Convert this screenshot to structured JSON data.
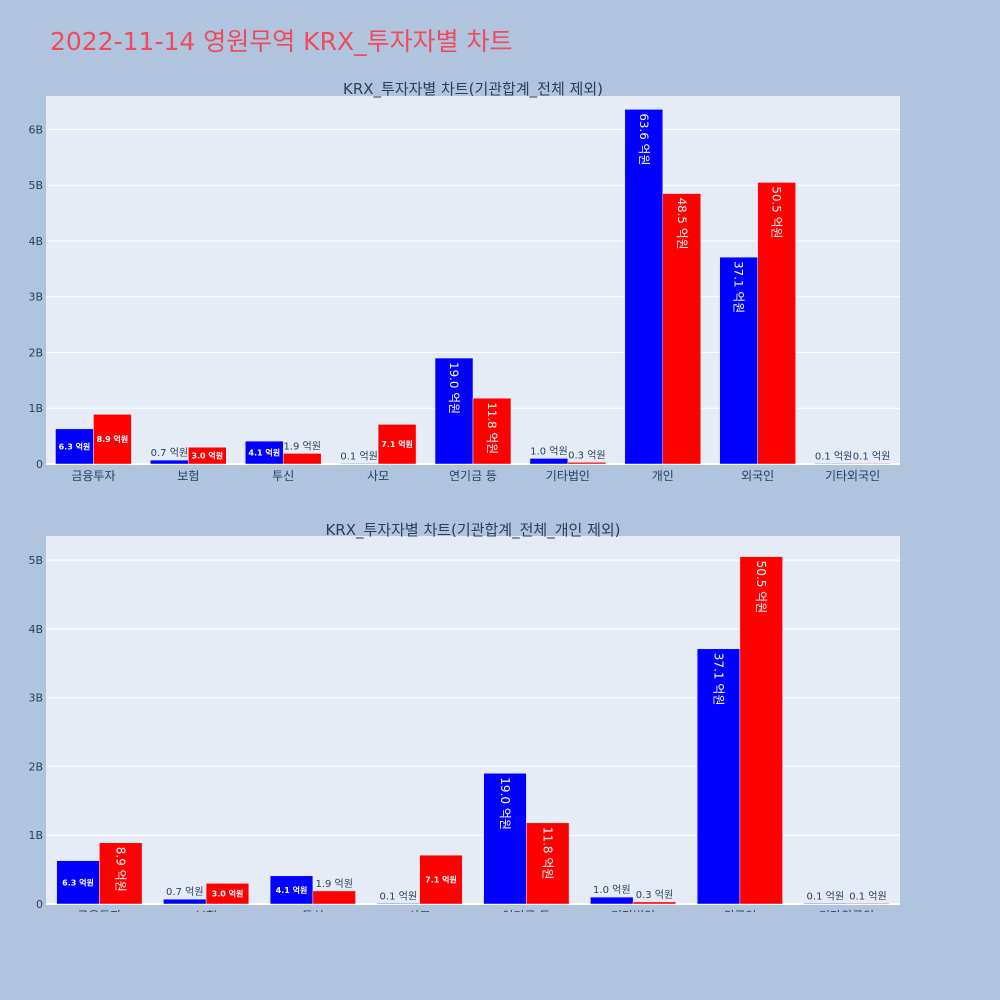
{
  "page_title": "2022-11-14 영원무역 KRX_투자자별 차트",
  "colors": {
    "background": "#b0c4de",
    "plot_bg": "#e5ecf6",
    "buy": "#0000ff",
    "sell": "#ff0000",
    "title": "#ef4b5f"
  },
  "chart_data": [
    {
      "type": "bar",
      "title": "KRX_투자자별 차트(기관합계_전체 제외)",
      "categories": [
        "금융투자",
        "보험",
        "투신",
        "사모",
        "연기금 등",
        "기타법인",
        "개인",
        "외국인",
        "기타외국인"
      ],
      "ylim": [
        0,
        6.6
      ],
      "y_ticks": [
        0,
        1,
        2,
        3,
        4,
        5,
        6
      ],
      "y_tick_labels": [
        "0",
        "1B",
        "2B",
        "3B",
        "4B",
        "5B",
        "6B"
      ],
      "grid": true,
      "series": [
        {
          "color": "#0000ff",
          "values": [
            0.63,
            0.07,
            0.41,
            0.01,
            1.9,
            0.1,
            6.36,
            3.71,
            0.01
          ],
          "labels": [
            "6.3 억원",
            "0.7 억원",
            "4.1 억원",
            "0.1 억원",
            "19.0 억원",
            "1.0 억원",
            "63.6 억원",
            "37.1 억원",
            "0.1 억원"
          ]
        },
        {
          "color": "#ff0000",
          "values": [
            0.89,
            0.3,
            0.19,
            0.71,
            1.18,
            0.03,
            4.85,
            5.05,
            0.01
          ],
          "labels": [
            "8.9 억원",
            "3.0 억원",
            "1.9 억원",
            "7.1 억원",
            "11.8 억원",
            "0.3 억원",
            "48.5 억원",
            "50.5 억원",
            "0.1 억원"
          ]
        }
      ]
    },
    {
      "type": "bar",
      "title": "KRX_투자자별 차트(기관합계_전체_개인 제외)",
      "categories": [
        "금융투자",
        "보험",
        "투신",
        "사모",
        "연기금 등",
        "기타법인",
        "외국인",
        "기타외국인"
      ],
      "ylim": [
        0,
        5.35
      ],
      "y_ticks": [
        0,
        1,
        2,
        3,
        4,
        5
      ],
      "y_tick_labels": [
        "0",
        "1B",
        "2B",
        "3B",
        "4B",
        "5B"
      ],
      "grid": true,
      "series": [
        {
          "color": "#0000ff",
          "values": [
            0.63,
            0.07,
            0.41,
            0.01,
            1.9,
            0.1,
            3.71,
            0.01
          ],
          "labels": [
            "6.3 억원",
            "0.7 억원",
            "4.1 억원",
            "0.1 억원",
            "19.0 억원",
            "1.0 억원",
            "37.1 억원",
            "0.1 억원"
          ]
        },
        {
          "color": "#ff0000",
          "values": [
            0.89,
            0.3,
            0.19,
            0.71,
            1.18,
            0.03,
            5.05,
            0.01
          ],
          "labels": [
            "8.9 억원",
            "3.0 억원",
            "1.9 억원",
            "7.1 억원",
            "11.8 억원",
            "0.3 억원",
            "50.5 억원",
            "0.1 억원"
          ]
        }
      ]
    }
  ]
}
